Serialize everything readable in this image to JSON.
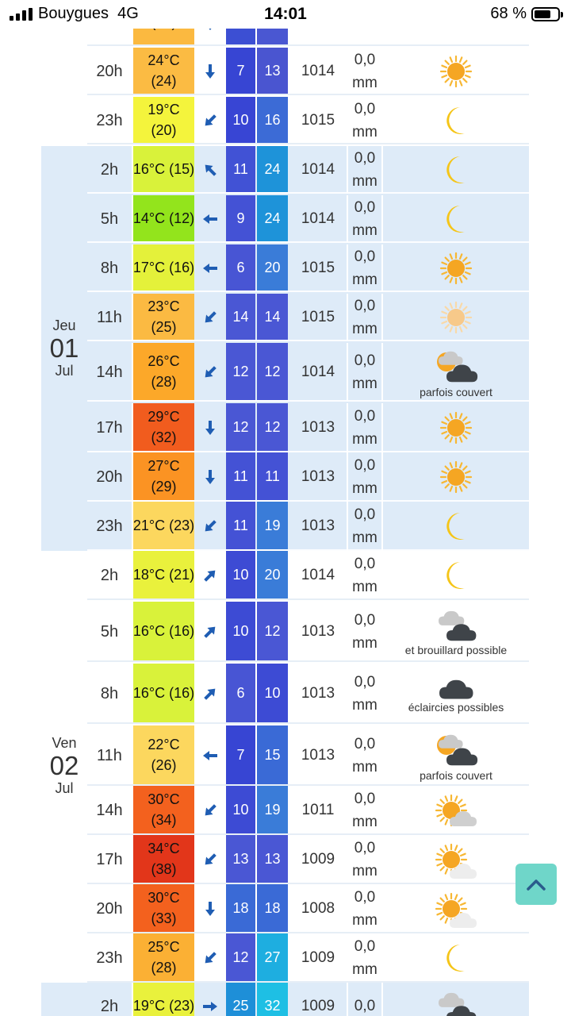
{
  "status_bar": {
    "carrier": "Bouygues",
    "network": "4G",
    "time": "14:01",
    "battery_pct": "68 %",
    "battery_level": 0.68
  },
  "days": [
    {
      "name": "Jeu",
      "date": "01",
      "month": "Jul"
    },
    {
      "name": "Ven",
      "date": "02",
      "month": "Jul"
    }
  ],
  "rows": [
    {
      "hour": "",
      "temp": "",
      "feels": "(25)",
      "single": false,
      "wind_dir": "down",
      "wind": "",
      "gust": "",
      "pressure": "",
      "rain_val": "",
      "rain_unit": "mm",
      "icon": "sun",
      "caption": "",
      "temp_color": "#fbb940",
      "w1_color": "#3c4fd3",
      "w2_color": "#4a57d2"
    },
    {
      "hour": "20h",
      "temp": "24°C",
      "feels": "(24)",
      "single": false,
      "wind_dir": "down",
      "wind": "7",
      "gust": "13",
      "pressure": "1014",
      "rain_val": "0,0",
      "rain_unit": "mm",
      "icon": "sun",
      "caption": "",
      "temp_color": "#fbbb43",
      "w1_color": "#3745d3",
      "w2_color": "#4a55d0"
    },
    {
      "hour": "23h",
      "temp": "19°C",
      "feels": "(20)",
      "single": false,
      "wind_dir": "down-left",
      "wind": "10",
      "gust": "16",
      "pressure": "1015",
      "rain_val": "0,0",
      "rain_unit": "mm",
      "icon": "moon",
      "caption": "",
      "temp_color": "#f4f43c",
      "w1_color": "#3845d4",
      "w2_color": "#3c6bd6"
    },
    {
      "hour": "2h",
      "temp": "16°C",
      "feels": "(15)",
      "single": true,
      "wind_dir": "up-left",
      "wind": "11",
      "gust": "24",
      "pressure": "1014",
      "rain_val": "0,0",
      "rain_unit": "mm",
      "icon": "moon",
      "caption": "",
      "temp_color": "#d9f23a",
      "w1_color": "#4152d5",
      "w2_color": "#1e93d9"
    },
    {
      "hour": "5h",
      "temp": "14°C",
      "feels": "(12)",
      "single": true,
      "wind_dir": "left",
      "wind": "9",
      "gust": "24",
      "pressure": "1014",
      "rain_val": "0,0",
      "rain_unit": "mm",
      "icon": "moon",
      "caption": "",
      "temp_color": "#93e41c",
      "w1_color": "#4452d5",
      "w2_color": "#1e93d9"
    },
    {
      "hour": "8h",
      "temp": "17°C",
      "feels": "(16)",
      "single": true,
      "wind_dir": "left",
      "wind": "6",
      "gust": "20",
      "pressure": "1015",
      "rain_val": "0,0",
      "rain_unit": "mm",
      "icon": "sun",
      "caption": "",
      "temp_color": "#e4f13a",
      "w1_color": "#4855d4",
      "w2_color": "#3a7cd8"
    },
    {
      "hour": "11h",
      "temp": "23°C",
      "feels": "(25)",
      "single": false,
      "wind_dir": "down-left",
      "wind": "14",
      "gust": "14",
      "pressure": "1015",
      "rain_val": "0,0",
      "rain_unit": "mm",
      "icon": "sun-pale",
      "caption": "",
      "temp_color": "#fbba42",
      "w1_color": "#4a57d4",
      "w2_color": "#4a57d4"
    },
    {
      "hour": "14h",
      "temp": "26°C",
      "feels": "(28)",
      "single": false,
      "wind_dir": "down-left",
      "wind": "12",
      "gust": "12",
      "pressure": "1014",
      "rain_val": "0,0",
      "rain_unit": "mm",
      "icon": "partly-dark",
      "caption": "parfois couvert",
      "temp_color": "#fca829",
      "w1_color": "#4a57d4",
      "w2_color": "#4a57d4"
    },
    {
      "hour": "17h",
      "temp": "29°C",
      "feels": "(32)",
      "single": false,
      "wind_dir": "down",
      "wind": "12",
      "gust": "12",
      "pressure": "1013",
      "rain_val": "0,0",
      "rain_unit": "mm",
      "icon": "sun",
      "caption": "",
      "temp_color": "#f15c1e",
      "w1_color": "#4a57d4",
      "w2_color": "#4a57d4"
    },
    {
      "hour": "20h",
      "temp": "27°C",
      "feels": "(29)",
      "single": false,
      "wind_dir": "down",
      "wind": "11",
      "gust": "11",
      "pressure": "1013",
      "rain_val": "0,0",
      "rain_unit": "mm",
      "icon": "sun",
      "caption": "",
      "temp_color": "#fb9323",
      "w1_color": "#4452d5",
      "w2_color": "#4452d5"
    },
    {
      "hour": "23h",
      "temp": "21°C",
      "feels": "(23)",
      "single": true,
      "wind_dir": "down-left",
      "wind": "11",
      "gust": "19",
      "pressure": "1013",
      "rain_val": "0,0",
      "rain_unit": "mm",
      "icon": "moon",
      "caption": "",
      "temp_color": "#fcd75e",
      "w1_color": "#4452d5",
      "w2_color": "#3a7cd8"
    },
    {
      "hour": "2h",
      "temp": "18°C",
      "feels": "(21)",
      "single": true,
      "wind_dir": "up-right",
      "wind": "10",
      "gust": "20",
      "pressure": "1014",
      "rain_val": "0,0",
      "rain_unit": "mm",
      "icon": "moon",
      "caption": "",
      "temp_color": "#e9f13c",
      "w1_color": "#3d4bd4",
      "w2_color": "#3a7cd8"
    },
    {
      "hour": "5h",
      "temp": "16°C",
      "feels": "(16)",
      "single": true,
      "wind_dir": "up-right",
      "wind": "10",
      "gust": "12",
      "pressure": "1013",
      "rain_val": "0,0",
      "rain_unit": "mm",
      "icon": "partly-moon",
      "caption": "et brouillard possible",
      "temp_color": "#d9f23a",
      "w1_color": "#3d4bd4",
      "w2_color": "#4a57d4"
    },
    {
      "hour": "8h",
      "temp": "16°C",
      "feels": "(16)",
      "single": true,
      "wind_dir": "up-right",
      "wind": "6",
      "gust": "10",
      "pressure": "1013",
      "rain_val": "0,0",
      "rain_unit": "mm",
      "icon": "cloud-dark",
      "caption": "éclaircies possibles",
      "temp_color": "#d9f23a",
      "w1_color": "#4855d4",
      "w2_color": "#3d4bd4"
    },
    {
      "hour": "11h",
      "temp": "22°C",
      "feels": "(26)",
      "single": false,
      "wind_dir": "left",
      "wind": "7",
      "gust": "15",
      "pressure": "1013",
      "rain_val": "0,0",
      "rain_unit": "mm",
      "icon": "partly-dark",
      "caption": "parfois couvert",
      "temp_color": "#fcd75e",
      "w1_color": "#3745d3",
      "w2_color": "#3a6ad6"
    },
    {
      "hour": "14h",
      "temp": "30°C",
      "feels": "(34)",
      "single": false,
      "wind_dir": "down-left",
      "wind": "10",
      "gust": "19",
      "pressure": "1011",
      "rain_val": "0,0",
      "rain_unit": "mm",
      "icon": "sun-cloud",
      "caption": "",
      "temp_color": "#f3611e",
      "w1_color": "#3d4bd4",
      "w2_color": "#3a7cd8"
    },
    {
      "hour": "17h",
      "temp": "34°C",
      "feels": "(38)",
      "single": false,
      "wind_dir": "down-left",
      "wind": "13",
      "gust": "13",
      "pressure": "1009",
      "rain_val": "0,0",
      "rain_unit": "mm",
      "icon": "sun-cloud-light",
      "caption": "",
      "temp_color": "#e2361a",
      "w1_color": "#4a57d4",
      "w2_color": "#4a57d4"
    },
    {
      "hour": "20h",
      "temp": "30°C",
      "feels": "(33)",
      "single": false,
      "wind_dir": "down",
      "wind": "18",
      "gust": "18",
      "pressure": "1008",
      "rain_val": "0,0",
      "rain_unit": "mm",
      "icon": "sun-cloud-light",
      "caption": "",
      "temp_color": "#f3611e",
      "w1_color": "#3a6ad6",
      "w2_color": "#3a6ad6"
    },
    {
      "hour": "23h",
      "temp": "25°C",
      "feels": "(28)",
      "single": false,
      "wind_dir": "down-left",
      "wind": "12",
      "gust": "27",
      "pressure": "1009",
      "rain_val": "0,0",
      "rain_unit": "mm",
      "icon": "moon",
      "caption": "",
      "temp_color": "#fbb034",
      "w1_color": "#4a57d4",
      "w2_color": "#1eaee0"
    },
    {
      "hour": "2h",
      "temp": "19°C",
      "feels": "(23)",
      "single": true,
      "wind_dir": "right",
      "wind": "25",
      "gust": "32",
      "pressure": "1009",
      "rain_val": "0,0",
      "rain_unit": "",
      "icon": "partly-moon",
      "caption": "",
      "temp_color": "#e9f13c",
      "w1_color": "#1e8fd8",
      "w2_color": "#1ebfe4"
    }
  ]
}
